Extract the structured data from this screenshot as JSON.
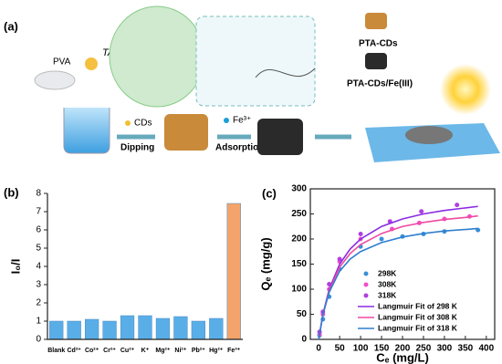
{
  "scheme": {
    "panel_label": "(a)",
    "pva": "PVA",
    "ta": "TA",
    "cds": "CDs",
    "dipping": "Dipping",
    "fe": "Fe³⁺",
    "adsorption": "Adsorption",
    "product_1": "PTA-CDs",
    "product_2": "PTA-CDs/Fe(III)"
  },
  "chart_data": [
    {
      "type": "bar",
      "panel_label": "(b)",
      "y_label": "I₀/I",
      "categories": [
        "Blank",
        "Cd²⁺",
        "Co²⁺",
        "Cr²⁺",
        "Cu²⁺",
        "K⁺",
        "Mg²⁺",
        "Ni²⁺",
        "Pb²⁺",
        "Hg²⁺",
        "Fe³⁺"
      ],
      "values": [
        1.0,
        1.0,
        1.1,
        1.0,
        1.3,
        1.3,
        1.15,
        1.25,
        1.0,
        1.15,
        7.45
      ],
      "colors": [
        "#5aaee8",
        "#5aaee8",
        "#5aaee8",
        "#5aaee8",
        "#5aaee8",
        "#5aaee8",
        "#5aaee8",
        "#5aaee8",
        "#5aaee8",
        "#5aaee8",
        "#f4a46a"
      ],
      "ylim": [
        0,
        8
      ],
      "yticks": [
        0,
        1,
        2,
        3,
        4,
        5,
        6,
        7,
        8
      ]
    },
    {
      "type": "scatter",
      "panel_label": "(c)",
      "x_label": "Cₑ (mg/L)",
      "y_label": "Qₑ (mg/g)",
      "xlim": [
        -20,
        420
      ],
      "ylim": [
        0,
        300
      ],
      "xticks": [
        0,
        50,
        100,
        150,
        200,
        250,
        300,
        350,
        400
      ],
      "yticks": [
        0,
        50,
        100,
        150,
        200,
        250,
        300
      ],
      "series": [
        {
          "name": "298K",
          "color": "#3a8fd8",
          "mode": "markers",
          "x": [
            2,
            10,
            25,
            50,
            100,
            150,
            200,
            250,
            300,
            380
          ],
          "values": [
            8,
            40,
            85,
            140,
            185,
            200,
            205,
            210,
            215,
            218
          ]
        },
        {
          "name": "308K",
          "color": "#f050c8",
          "mode": "markers",
          "x": [
            2,
            10,
            25,
            50,
            100,
            175,
            240,
            300,
            360
          ],
          "values": [
            10,
            50,
            100,
            155,
            200,
            220,
            232,
            240,
            245
          ]
        },
        {
          "name": "318K",
          "color": "#b040e0",
          "mode": "markers",
          "x": [
            2,
            10,
            25,
            50,
            100,
            170,
            245,
            330
          ],
          "values": [
            15,
            55,
            110,
            160,
            210,
            235,
            255,
            268
          ]
        },
        {
          "name": "Langmuir Fit of 298 K",
          "color": "#8a2be2",
          "mode": "line",
          "x": [
            0,
            10,
            25,
            50,
            75,
            100,
            150,
            200,
            250,
            300,
            350,
            380
          ],
          "values": [
            0,
            50,
            100,
            150,
            180,
            200,
            225,
            240,
            250,
            257,
            262,
            265
          ]
        },
        {
          "name": "Langmuir Fit of 308 K",
          "color": "#f04aa0",
          "mode": "line",
          "x": [
            0,
            10,
            25,
            50,
            75,
            100,
            150,
            200,
            250,
            300,
            350,
            380
          ],
          "values": [
            0,
            49,
            97,
            144,
            171,
            189,
            211,
            225,
            233,
            239,
            243,
            246
          ]
        },
        {
          "name": "Langmuir Fit of 318 K",
          "color": "#2f7fd0",
          "mode": "line",
          "x": [
            0,
            10,
            25,
            50,
            75,
            100,
            150,
            200,
            250,
            300,
            350,
            380
          ],
          "values": [
            0,
            49,
            94,
            136,
            160,
            175,
            193,
            204,
            211,
            216,
            219,
            221
          ]
        }
      ]
    }
  ]
}
